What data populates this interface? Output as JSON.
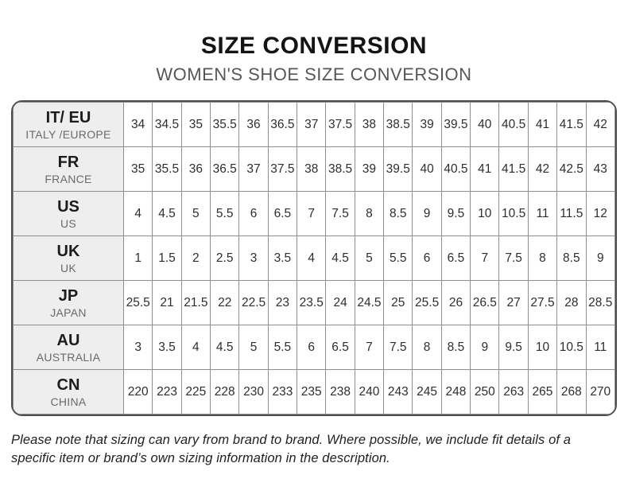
{
  "page": {
    "title": "SIZE CONVERSION",
    "subtitle": "WOMEN'S SHOE SIZE CONVERSION",
    "footnote": "Please note that sizing can vary from brand to brand. Where possible, we include fit details of a specific item or brand’s own sizing information in the description."
  },
  "colors": {
    "title_text": "#141414",
    "subtitle_text": "#565656",
    "table_outer_border": "#4d4d4d",
    "table_grid_line": "#8f8f8f",
    "header_cell_bg": "#eeeeee",
    "cell_text": "#2e2e2e"
  },
  "chart_data": {
    "type": "table",
    "title": "SIZE CONVERSION",
    "subtitle": "WOMEN'S SHOE SIZE CONVERSION",
    "row_header_columns": [
      "code",
      "region"
    ],
    "rows": [
      {
        "code": "IT/ EU",
        "region": "ITALY /EUROPE",
        "values": [
          "34",
          "34.5",
          "35",
          "35.5",
          "36",
          "36.5",
          "37",
          "37.5",
          "38",
          "38.5",
          "39",
          "39.5",
          "40",
          "40.5",
          "41",
          "41.5",
          "42"
        ]
      },
      {
        "code": "FR",
        "region": "FRANCE",
        "values": [
          "35",
          "35.5",
          "36",
          "36.5",
          "37",
          "37.5",
          "38",
          "38.5",
          "39",
          "39.5",
          "40",
          "40.5",
          "41",
          "41.5",
          "42",
          "42.5",
          "43"
        ]
      },
      {
        "code": "US",
        "region": "US",
        "values": [
          "4",
          "4.5",
          "5",
          "5.5",
          "6",
          "6.5",
          "7",
          "7.5",
          "8",
          "8.5",
          "9",
          "9.5",
          "10",
          "10.5",
          "11",
          "11.5",
          "12"
        ]
      },
      {
        "code": "UK",
        "region": "UK",
        "values": [
          "1",
          "1.5",
          "2",
          "2.5",
          "3",
          "3.5",
          "4",
          "4.5",
          "5",
          "5.5",
          "6",
          "6.5",
          "7",
          "7.5",
          "8",
          "8.5",
          "9"
        ]
      },
      {
        "code": "JP",
        "region": "JAPAN",
        "values": [
          "25.5",
          "21",
          "21.5",
          "22",
          "22.5",
          "23",
          "23.5",
          "24",
          "24.5",
          "25",
          "25.5",
          "26",
          "26.5",
          "27",
          "27.5",
          "28",
          "28.5"
        ]
      },
      {
        "code": "AU",
        "region": "AUSTRALIA",
        "values": [
          "3",
          "3.5",
          "4",
          "4.5",
          "5",
          "5.5",
          "6",
          "6.5",
          "7",
          "7.5",
          "8",
          "8.5",
          "9",
          "9.5",
          "10",
          "10.5",
          "11"
        ]
      },
      {
        "code": "CN",
        "region": "CHINA",
        "values": [
          "220",
          "223",
          "225",
          "228",
          "230",
          "233",
          "235",
          "238",
          "240",
          "243",
          "245",
          "248",
          "250",
          "263",
          "265",
          "268",
          "270"
        ]
      }
    ]
  }
}
